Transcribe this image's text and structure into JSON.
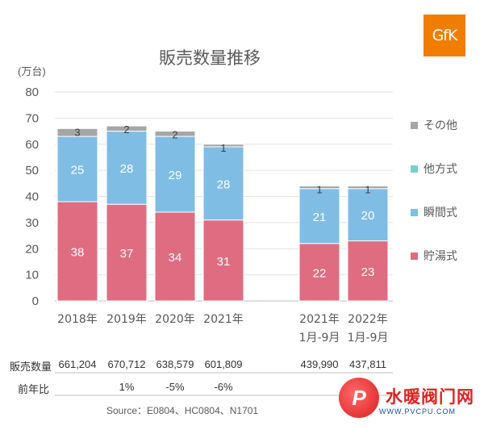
{
  "logo_text": "GfK",
  "chart_data": {
    "type": "bar",
    "stacked": true,
    "title": "販売数量推移",
    "unit_label": "(万台)",
    "ylim": [
      0,
      80
    ],
    "yticks": [
      0,
      10,
      20,
      30,
      40,
      50,
      60,
      70,
      80
    ],
    "categories": [
      {
        "line1": "2018年",
        "line2": ""
      },
      {
        "line1": "2019年",
        "line2": ""
      },
      {
        "line1": "2020年",
        "line2": ""
      },
      {
        "line1": "2021年",
        "line2": ""
      },
      {
        "line1": "2021年",
        "line2": "1月-9月"
      },
      {
        "line1": "2022年",
        "line2": "1月-9月"
      }
    ],
    "series": [
      {
        "name": "貯湯式",
        "color": "#e06c82",
        "values": [
          38,
          37,
          34,
          31,
          22,
          23
        ]
      },
      {
        "name": "瞬間式",
        "color": "#7fbde5",
        "values": [
          25,
          28,
          29,
          28,
          21,
          20
        ]
      },
      {
        "name": "他方式",
        "color": "#79cfd0",
        "values": [
          0,
          0,
          0,
          0,
          0,
          0
        ]
      },
      {
        "name": "その他",
        "color": "#a6a6a6",
        "values": [
          3,
          2,
          2,
          1,
          1,
          1
        ]
      }
    ],
    "legend_order": [
      "その他",
      "他方式",
      "瞬間式",
      "貯湯式"
    ],
    "legend_position": "right"
  },
  "table": {
    "rows": [
      {
        "label": "販売数量",
        "values": [
          "661,204",
          "670,712",
          "638,579",
          "601,809",
          "439,990",
          "437,811"
        ]
      },
      {
        "label": "前年比",
        "values": [
          "",
          "1%",
          "-5%",
          "-6%",
          "",
          "0%"
        ]
      }
    ]
  },
  "source": "Source：E0804、HC0804、N1701",
  "watermark": {
    "badge": "P",
    "name": "水暖阀门网",
    "url": "WWW.PVCPU.COM"
  }
}
